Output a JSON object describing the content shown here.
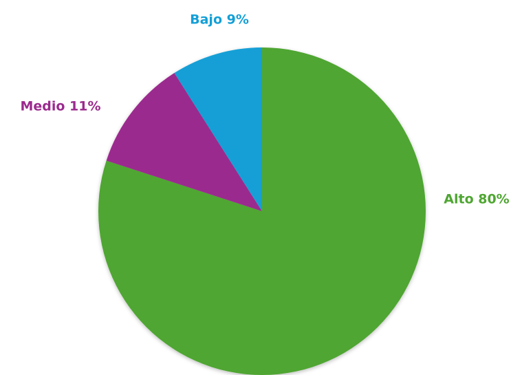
{
  "chart_data": {
    "type": "pie",
    "title": "",
    "start": "top",
    "direction": "clockwise",
    "slices": [
      {
        "label": "Alto",
        "value": 80,
        "display": "Alto 80%",
        "color": "#4fa632"
      },
      {
        "label": "Medio",
        "value": 11,
        "display": "Medio 11%",
        "color": "#9b2a8e"
      },
      {
        "label": "Bajo",
        "value": 9,
        "display": "Bajo 9%",
        "color": "#139fd6"
      }
    ]
  }
}
